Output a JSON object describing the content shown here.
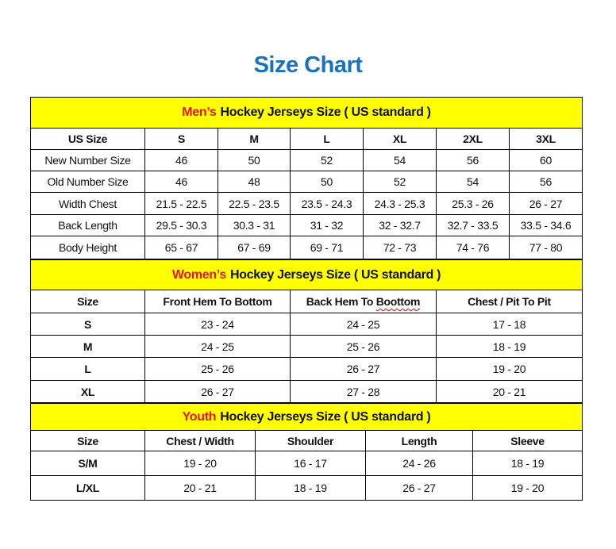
{
  "title": "Size Chart",
  "colors": {
    "title": "#1a72bb",
    "band": "#ffff00",
    "highlight": "#e3161a"
  },
  "mens": {
    "heading_highlight": "Men’s",
    "heading_rest": "Hockey Jerseys Size ( US standard )",
    "columns": [
      "US Size",
      "S",
      "M",
      "L",
      "XL",
      "2XL",
      "3XL"
    ],
    "rows": [
      [
        "New Number Size",
        "46",
        "50",
        "52",
        "54",
        "56",
        "60"
      ],
      [
        "Old Number Size",
        "46",
        "48",
        "50",
        "52",
        "54",
        "56"
      ],
      [
        "Width Chest",
        "21.5 - 22.5",
        "22.5 - 23.5",
        "23.5 - 24.3",
        "24.3 - 25.3",
        "25.3 - 26",
        "26 - 27"
      ],
      [
        "Back Length",
        "29.5 - 30.3",
        "30.3 - 31",
        "31 - 32",
        "32 - 32.7",
        "32.7 - 33.5",
        "33.5 - 34.6"
      ],
      [
        "Body Height",
        "65 - 67",
        "67 - 69",
        "69 - 71",
        "72 - 73",
        "74 - 76",
        "77 - 80"
      ]
    ]
  },
  "womens": {
    "heading_highlight": "Women’s",
    "heading_rest": "Hockey Jerseys Size ( US standard )",
    "columns": [
      "Size",
      "Front Hem To Bottom",
      "Back Hem To Boottom",
      "Chest / Pit To Pit"
    ],
    "rows": [
      [
        "S",
        "23 - 24",
        "24 - 25",
        "17 - 18"
      ],
      [
        "M",
        "24 - 25",
        "25 - 26",
        "18 - 19"
      ],
      [
        "L",
        "25 - 26",
        "26 - 27",
        "19 - 20"
      ],
      [
        "XL",
        "26 - 27",
        "27 - 28",
        "20 - 21"
      ]
    ]
  },
  "youth": {
    "heading_highlight": "Youth",
    "heading_rest": "Hockey Jerseys Size ( US standard )",
    "columns": [
      "Size",
      "Chest / Width",
      "Shoulder",
      "Length",
      "Sleeve"
    ],
    "rows": [
      [
        "S/M",
        "19 - 20",
        "16 - 17",
        "24 - 26",
        "18 - 19"
      ],
      [
        "L/XL",
        "20 - 21",
        "18 - 19",
        "26 - 27",
        "19 - 20"
      ]
    ]
  }
}
